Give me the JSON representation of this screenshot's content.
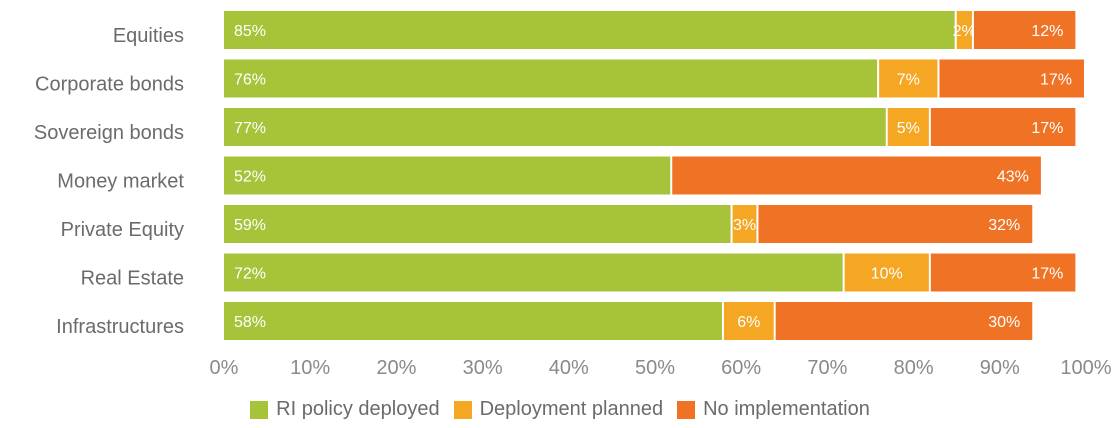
{
  "chart_data": {
    "type": "bar",
    "orientation": "horizontal",
    "stacked": true,
    "title": "",
    "xlabel": "",
    "ylabel": "",
    "xlim": [
      0,
      100
    ],
    "x_ticks": [
      "0%",
      "10%",
      "20%",
      "30%",
      "40%",
      "50%",
      "60%",
      "70%",
      "80%",
      "90%",
      "100%"
    ],
    "categories": [
      "Equities",
      "Corporate bonds",
      "Sovereign bonds",
      "Money market",
      "Private Equity",
      "Real Estate",
      "Infrastructures"
    ],
    "series": [
      {
        "name": "RI policy deployed",
        "color": "#a6c33a",
        "values": [
          85,
          76,
          77,
          52,
          59,
          72,
          58
        ]
      },
      {
        "name": "Deployment planned",
        "color": "#f5a623",
        "values": [
          2,
          7,
          5,
          0,
          3,
          10,
          6
        ]
      },
      {
        "name": "No implementation",
        "color": "#f07325",
        "values": [
          12,
          17,
          17,
          43,
          32,
          17,
          30
        ]
      }
    ],
    "bar_value_labels": [
      [
        "85%",
        "2%",
        "12%"
      ],
      [
        "76%",
        "7%",
        "17%"
      ],
      [
        "77%",
        "5%",
        "17%"
      ],
      [
        "52%",
        "",
        "43%"
      ],
      [
        "59%",
        "3%",
        "32%"
      ],
      [
        "72%",
        "10%",
        "17%"
      ],
      [
        "58%",
        "6%",
        "30%"
      ]
    ],
    "legend_position": "bottom",
    "grid": false
  }
}
